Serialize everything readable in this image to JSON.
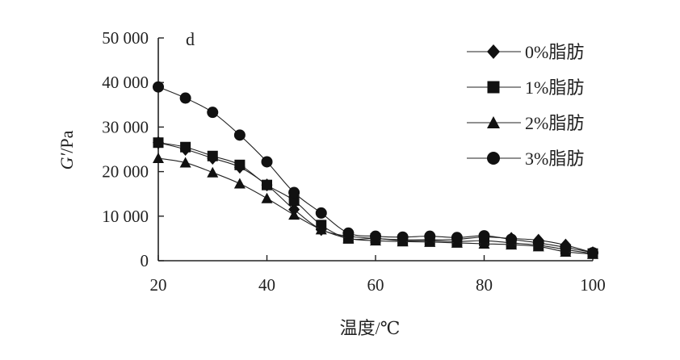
{
  "chart_data": {
    "type": "line",
    "panel_label": "d",
    "xlabel": "温度/℃",
    "ylabel_italic": "G′",
    "ylabel_unit": "/Pa",
    "xlim": [
      20,
      100
    ],
    "ylim": [
      0,
      50000
    ],
    "xticks": [
      20,
      40,
      60,
      80,
      100
    ],
    "yticks": [
      0,
      10000,
      20000,
      30000,
      40000,
      50000
    ],
    "ytick_labels": [
      "0",
      "10 000",
      "20 000",
      "30 000",
      "40 000",
      "50 000"
    ],
    "grid": false,
    "legend_position": "top-right",
    "x": [
      20,
      25,
      30,
      35,
      40,
      45,
      50,
      55,
      60,
      65,
      70,
      75,
      80,
      85,
      90,
      95,
      100
    ],
    "series": [
      {
        "name": "0%脂肪",
        "marker": "diamond",
        "values": [
          26500,
          25000,
          23000,
          21000,
          17000,
          11500,
          7000,
          5500,
          5000,
          4700,
          4700,
          4800,
          5300,
          5000,
          4600,
          3500,
          1800
        ]
      },
      {
        "name": "1%脂肪",
        "marker": "square",
        "values": [
          26500,
          25500,
          23500,
          21500,
          17000,
          13500,
          8000,
          5000,
          5000,
          4500,
          4500,
          4300,
          4500,
          4000,
          3500,
          2500,
          1600
        ]
      },
      {
        "name": "2%脂肪",
        "marker": "triangle",
        "values": [
          23000,
          22000,
          19800,
          17300,
          14000,
          10300,
          7000,
          5000,
          4500,
          4300,
          4200,
          4000,
          3800,
          3600,
          3200,
          2000,
          1500
        ]
      },
      {
        "name": "3%脂肪",
        "marker": "circle",
        "values": [
          39000,
          36500,
          33300,
          28200,
          22200,
          15300,
          10700,
          6200,
          5500,
          5300,
          5500,
          5200,
          5600,
          4800,
          4000,
          3000,
          1800
        ]
      }
    ]
  }
}
